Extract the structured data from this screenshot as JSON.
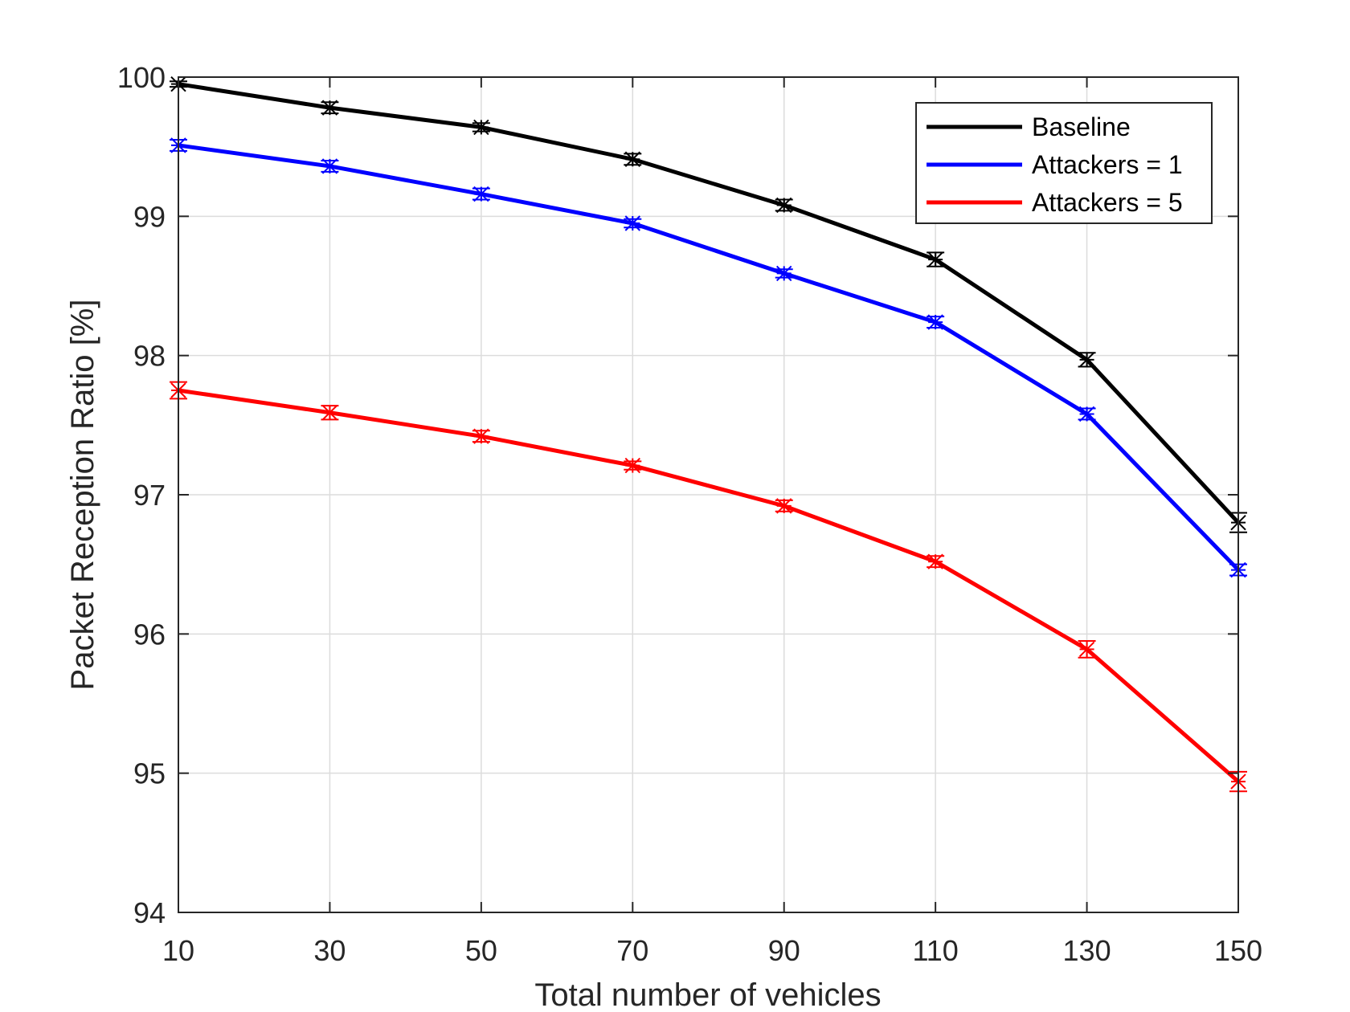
{
  "chart_data": {
    "type": "line",
    "xlabel": "Total number of vehicles",
    "ylabel": "Packet Reception Ratio [%]",
    "xlim": [
      10,
      150
    ],
    "ylim": [
      94,
      100
    ],
    "x_ticks": [
      "10",
      "30",
      "50",
      "70",
      "90",
      "110",
      "130",
      "150"
    ],
    "y_ticks": [
      "94",
      "95",
      "96",
      "97",
      "98",
      "99",
      "100"
    ],
    "grid": true,
    "legend_position": "top-right",
    "x": [
      10,
      30,
      50,
      70,
      90,
      110,
      130,
      150
    ],
    "series": [
      {
        "name": "Baseline",
        "color": "#000000",
        "marker": "asterisk",
        "values": [
          99.95,
          99.78,
          99.64,
          99.41,
          99.08,
          98.69,
          97.97,
          96.8
        ],
        "errors": [
          0.02,
          0.04,
          0.03,
          0.04,
          0.04,
          0.05,
          0.05,
          0.07
        ]
      },
      {
        "name": "Attackers = 1",
        "color": "#0000ff",
        "marker": "asterisk",
        "values": [
          99.51,
          99.36,
          99.16,
          98.95,
          98.59,
          98.24,
          97.58,
          96.46
        ],
        "errors": [
          0.04,
          0.04,
          0.04,
          0.03,
          0.03,
          0.04,
          0.04,
          0.04
        ]
      },
      {
        "name": "Attackers = 5",
        "color": "#ff0000",
        "marker": "asterisk",
        "values": [
          97.75,
          97.59,
          97.42,
          97.21,
          96.92,
          96.52,
          95.89,
          94.94
        ],
        "errors": [
          0.06,
          0.05,
          0.04,
          0.03,
          0.04,
          0.04,
          0.06,
          0.07
        ]
      }
    ]
  }
}
